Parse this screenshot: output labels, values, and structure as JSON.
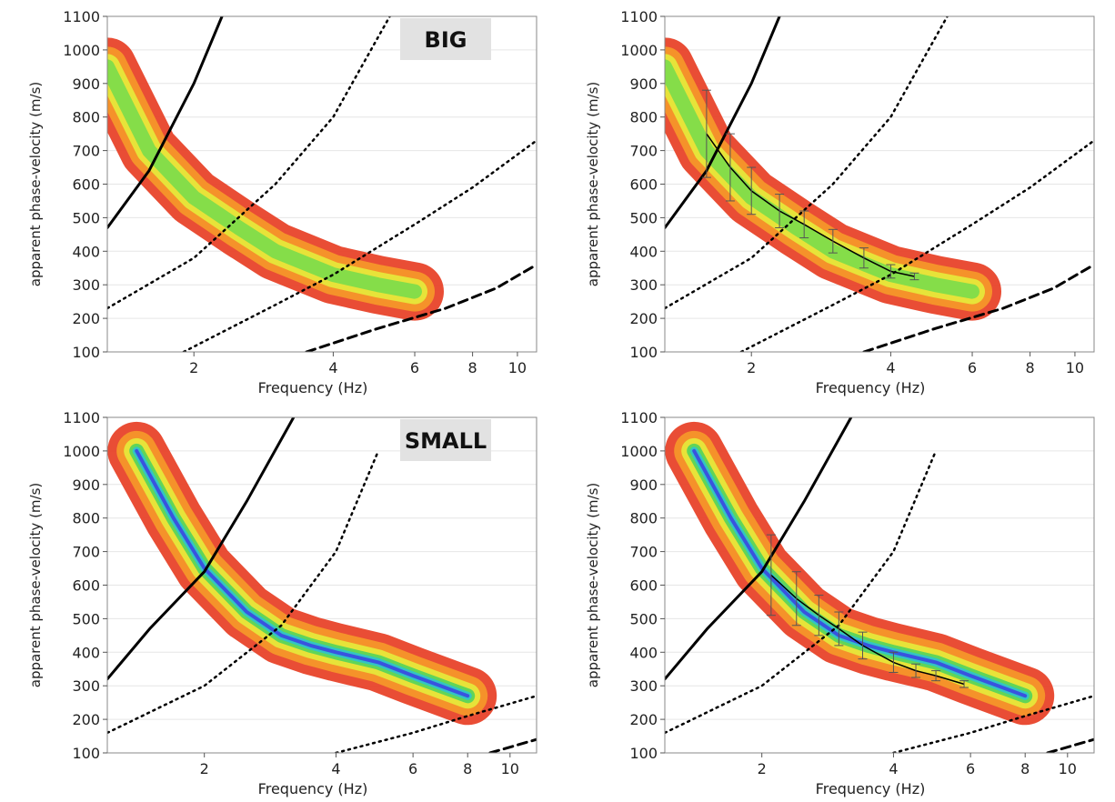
{
  "chart_data": [
    {
      "type": "line",
      "annotation": "BIG",
      "x_label": "Frequency (Hz)",
      "y_label": "apparent phase-velocity (m/s)",
      "log_x": true,
      "xlim": [
        1.3,
        11
      ],
      "xticks": [
        2,
        4,
        6,
        8,
        10
      ],
      "ylim": [
        100,
        1100
      ],
      "yticks": [
        100,
        200,
        300,
        400,
        500,
        600,
        700,
        800,
        900,
        1000,
        1100
      ],
      "grid": true,
      "ridge": {
        "x": [
          1.3,
          1.6,
          2,
          2.5,
          3,
          4,
          5,
          6
        ],
        "values": [
          950,
          700,
          560,
          470,
          400,
          330,
          300,
          280
        ],
        "colors": [
          "#e8432a",
          "#f5962a",
          "#e6e83a",
          "#7fdc4a"
        ]
      },
      "series": [
        {
          "style": "solid",
          "color": "#000000",
          "x": [
            1.3,
            1.6,
            2.0,
            2.3
          ],
          "values": [
            470,
            640,
            900,
            1100
          ]
        },
        {
          "style": "dotted",
          "color": "#000000",
          "x": [
            1.3,
            2,
            3,
            4,
            5.3
          ],
          "values": [
            230,
            380,
            600,
            800,
            1100
          ]
        },
        {
          "style": "dotted",
          "color": "#000000",
          "x": [
            1.9,
            3,
            4,
            6,
            8,
            11
          ],
          "values": [
            100,
            240,
            330,
            480,
            590,
            730
          ]
        },
        {
          "style": "dashed",
          "color": "#000000",
          "x": [
            3.5,
            5,
            7,
            9,
            11
          ],
          "values": [
            100,
            170,
            230,
            290,
            360
          ]
        }
      ]
    },
    {
      "type": "line",
      "x_label": "Frequency (Hz)",
      "y_label": "apparent phase-velocity (m/s)",
      "log_x": true,
      "xlim": [
        1.3,
        11
      ],
      "xticks": [
        2,
        4,
        6,
        8,
        10
      ],
      "ylim": [
        100,
        1100
      ],
      "yticks": [
        100,
        200,
        300,
        400,
        500,
        600,
        700,
        800,
        900,
        1000,
        1100
      ],
      "grid": true,
      "ridge": {
        "x": [
          1.3,
          1.6,
          2,
          2.5,
          3,
          4,
          5,
          6
        ],
        "values": [
          950,
          700,
          560,
          470,
          400,
          330,
          300,
          280
        ],
        "colors": [
          "#e8432a",
          "#f5962a",
          "#e6e83a",
          "#7fdc4a"
        ]
      },
      "series": [
        {
          "style": "solid",
          "color": "#000000",
          "x": [
            1.3,
            1.6,
            2.0,
            2.3
          ],
          "values": [
            470,
            640,
            900,
            1100
          ]
        },
        {
          "style": "dotted",
          "color": "#000000",
          "x": [
            1.3,
            2,
            3,
            4,
            5.3
          ],
          "values": [
            230,
            380,
            600,
            800,
            1100
          ]
        },
        {
          "style": "dotted",
          "color": "#000000",
          "x": [
            1.9,
            3,
            4,
            6,
            8,
            11
          ],
          "values": [
            100,
            240,
            330,
            480,
            590,
            730
          ]
        },
        {
          "style": "dashed",
          "color": "#000000",
          "x": [
            3.5,
            5,
            7,
            9,
            11
          ],
          "values": [
            100,
            170,
            230,
            290,
            360
          ]
        }
      ],
      "picks": {
        "color": "#000000",
        "x": [
          1.6,
          1.8,
          2.0,
          2.3,
          2.6,
          3.0,
          3.5,
          4.0,
          4.5
        ],
        "values": [
          750,
          650,
          580,
          520,
          480,
          430,
          380,
          340,
          325
        ],
        "errors": [
          130,
          100,
          70,
          50,
          40,
          35,
          30,
          20,
          10
        ]
      }
    },
    {
      "type": "line",
      "annotation": "SMALL",
      "x_label": "Frequency (Hz)",
      "y_label": "apparent phase-velocity (m/s)",
      "log_x": true,
      "xlim": [
        1.2,
        11.5
      ],
      "xticks": [
        2,
        4,
        6,
        8,
        10
      ],
      "ylim": [
        100,
        1100
      ],
      "yticks": [
        100,
        200,
        300,
        400,
        500,
        600,
        700,
        800,
        900,
        1000,
        1100
      ],
      "grid": true,
      "ridge": {
        "x": [
          1.4,
          1.7,
          2,
          2.5,
          3,
          3.5,
          4,
          5,
          6,
          8
        ],
        "values": [
          1000,
          800,
          650,
          520,
          450,
          420,
          400,
          370,
          330,
          270
        ],
        "colors": [
          "#e8432a",
          "#f5962a",
          "#e6e83a",
          "#5ad45a",
          "#2fc4c8",
          "#3a4de0"
        ]
      },
      "series": [
        {
          "style": "solid",
          "color": "#000000",
          "x": [
            1.2,
            1.5,
            2,
            2.5,
            3.2
          ],
          "values": [
            320,
            470,
            640,
            850,
            1100
          ]
        },
        {
          "style": "dotted",
          "color": "#000000",
          "x": [
            1.2,
            2,
            3,
            4,
            5
          ],
          "values": [
            160,
            300,
            480,
            700,
            1000
          ]
        },
        {
          "style": "dotted",
          "color": "#000000",
          "x": [
            4,
            6,
            8,
            11.5
          ],
          "values": [
            100,
            160,
            210,
            270
          ]
        },
        {
          "style": "dashed",
          "color": "#000000",
          "x": [
            9,
            11.5
          ],
          "values": [
            100,
            140
          ]
        }
      ]
    },
    {
      "type": "line",
      "x_label": "Frequency (Hz)",
      "y_label": "apparent phase-velocity (m/s)",
      "log_x": true,
      "xlim": [
        1.2,
        11.5
      ],
      "xticks": [
        2,
        4,
        6,
        8,
        10
      ],
      "ylim": [
        100,
        1100
      ],
      "yticks": [
        100,
        200,
        300,
        400,
        500,
        600,
        700,
        800,
        900,
        1000,
        1100
      ],
      "grid": true,
      "ridge": {
        "x": [
          1.4,
          1.7,
          2,
          2.5,
          3,
          3.5,
          4,
          5,
          6,
          8
        ],
        "values": [
          1000,
          800,
          650,
          520,
          450,
          420,
          400,
          370,
          330,
          270
        ],
        "colors": [
          "#e8432a",
          "#f5962a",
          "#e6e83a",
          "#5ad45a",
          "#2fc4c8",
          "#3a4de0"
        ]
      },
      "series": [
        {
          "style": "solid",
          "color": "#000000",
          "x": [
            1.2,
            1.5,
            2,
            2.5,
            3.2
          ],
          "values": [
            320,
            470,
            640,
            850,
            1100
          ]
        },
        {
          "style": "dotted",
          "color": "#000000",
          "x": [
            1.2,
            2,
            3,
            4,
            5
          ],
          "values": [
            160,
            300,
            480,
            700,
            1000
          ]
        },
        {
          "style": "dotted",
          "color": "#000000",
          "x": [
            4,
            6,
            8,
            11.5
          ],
          "values": [
            100,
            160,
            210,
            270
          ]
        },
        {
          "style": "dashed",
          "color": "#000000",
          "x": [
            9,
            11.5
          ],
          "values": [
            100,
            140
          ]
        }
      ],
      "picks": {
        "color": "#000000",
        "x": [
          2.1,
          2.4,
          2.7,
          3,
          3.4,
          4,
          4.5,
          5,
          5.8
        ],
        "values": [
          630,
          560,
          510,
          470,
          420,
          370,
          345,
          330,
          305
        ],
        "errors": [
          120,
          80,
          60,
          50,
          40,
          30,
          20,
          15,
          10
        ]
      }
    }
  ]
}
